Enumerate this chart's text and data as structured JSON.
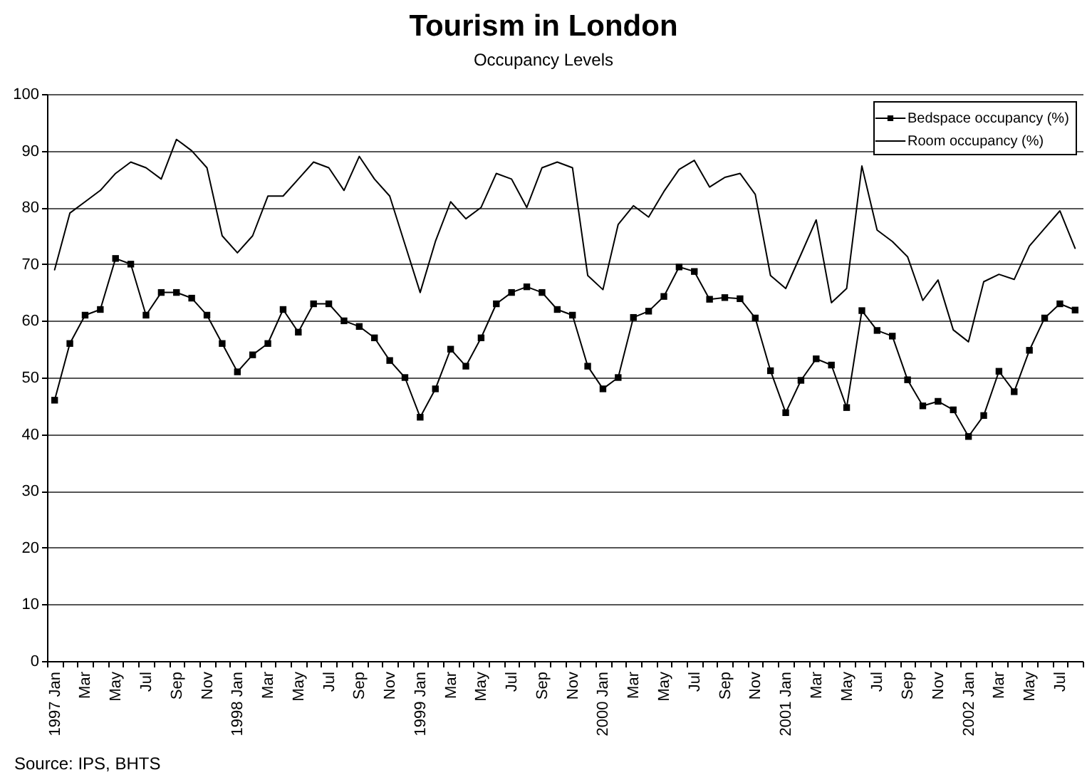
{
  "chart_data": {
    "type": "line",
    "title": "Tourism in London",
    "subtitle": "Occupancy Levels",
    "categories": [
      "1997 Jan",
      null,
      "Mar",
      null,
      "May",
      null,
      "Jul",
      null,
      "Sep",
      null,
      "Nov",
      null,
      "1998 Jan",
      null,
      "Mar",
      null,
      "May",
      null,
      "Jul",
      null,
      "Sep",
      null,
      "Nov",
      null,
      "1999 Jan",
      null,
      "Mar",
      null,
      "May",
      null,
      "Jul",
      null,
      "Sep",
      null,
      "Nov",
      null,
      "2000 Jan",
      null,
      "Mar",
      null,
      "May",
      null,
      "Jul",
      null,
      "Sep",
      null,
      "Nov",
      null,
      "2001 Jan",
      null,
      "Mar",
      null,
      "May",
      null,
      "Jul",
      null,
      "Sep",
      null,
      "Nov",
      null,
      "2002 Jan",
      null,
      "Mar",
      null,
      "May",
      null,
      "Jul",
      null
    ],
    "series": [
      {
        "name": "Bedspace occupancy (%)",
        "color": "#000000",
        "marker": "square",
        "values": [
          46,
          56,
          61,
          62,
          71,
          70,
          61,
          65,
          65,
          64,
          61,
          56,
          51,
          54,
          56,
          62,
          58,
          63,
          63,
          60,
          59,
          57,
          53,
          50,
          43,
          48,
          55,
          52,
          57,
          63,
          65,
          66,
          65,
          62,
          61,
          52,
          48,
          50,
          60.6,
          61.7,
          64.3,
          69.5,
          68.7,
          63.8,
          64.1,
          63.9,
          60.5,
          51.2,
          43.8,
          49.5,
          53.3,
          52.2,
          44.7,
          61.8,
          58.3,
          57.3,
          49.6,
          45,
          45.8,
          44.3,
          39.6,
          43.3,
          51.1,
          47.5,
          54.8,
          60.5,
          63,
          61.9
        ]
      },
      {
        "name": "Room occupancy (%)",
        "color": "#000000",
        "marker": "none",
        "values": [
          69,
          79,
          81,
          83,
          86,
          88,
          87,
          85,
          92,
          90,
          87,
          75,
          72,
          75,
          82,
          82,
          85,
          88,
          87,
          83,
          89,
          85,
          82,
          73.5,
          65,
          74,
          81,
          78,
          80,
          86,
          85,
          80,
          87,
          88,
          87,
          68,
          65.5,
          77,
          80.3,
          78.3,
          82.8,
          86.7,
          88.3,
          83.6,
          85.3,
          86,
          82.3,
          68,
          65.7,
          71.7,
          77.8,
          63.2,
          65.7,
          87.3,
          76,
          74,
          71.3,
          63.6,
          67.2,
          58.4,
          56.3,
          66.9,
          68.2,
          67.3,
          73.2,
          76.3,
          79.4,
          72.8
        ]
      }
    ],
    "ylim": [
      0,
      100
    ],
    "yticks": [
      0,
      10,
      20,
      30,
      40,
      50,
      60,
      70,
      80,
      90,
      100
    ],
    "grid": "y",
    "legend": "top right",
    "annotations": [
      "Source: IPS, BHTS"
    ]
  }
}
